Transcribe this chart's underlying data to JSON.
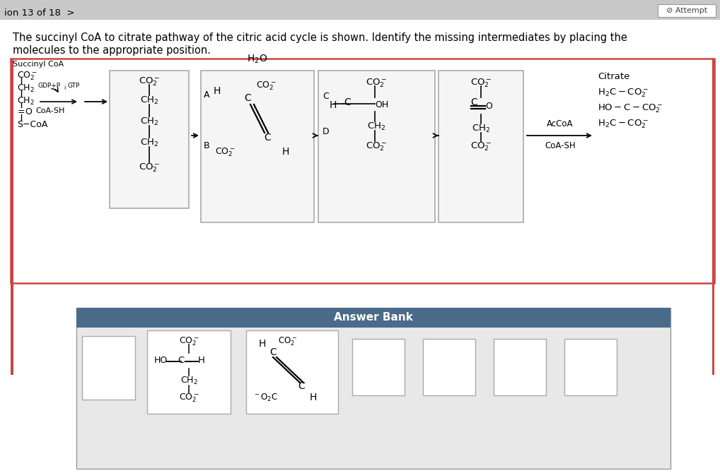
{
  "bg_top_bar": "#c8c8c8",
  "bg_white": "#ffffff",
  "bg_light": "#f0f0f0",
  "page_label": "ion 13 of 18  >",
  "attempt_label": "⊘ Attempt",
  "title_line1": "The succinyl CoA to citrate pathway of the citric acid cycle is shown. Identify the missing intermediates by placing the",
  "title_line2": "molecules to the appropriate position.",
  "answer_bank_text": "Answer Bank",
  "answer_bank_bg": "#4a6b8a",
  "red_border": "#cc4444",
  "gray_border": "#aaaaaa",
  "box_fill": "#f5f5f5",
  "light_gray_fill": "#e8e8e8"
}
